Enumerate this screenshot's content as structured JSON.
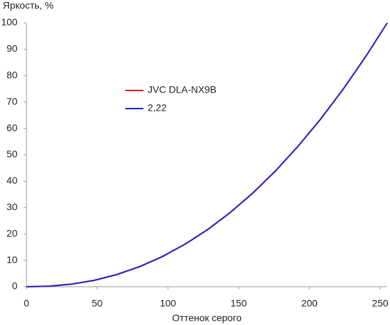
{
  "chart_data": {
    "type": "line",
    "y_label": "Яркость, %",
    "x_label": "Оттенок серого",
    "x": [
      0,
      16,
      32,
      48,
      64,
      80,
      96,
      112,
      128,
      144,
      160,
      176,
      192,
      208,
      224,
      240,
      255
    ],
    "series": [
      {
        "name": "JVC DLA-NX9B",
        "color": "#e8141c",
        "values": [
          0,
          0.2,
          1.0,
          2.4,
          4.6,
          7.6,
          11.4,
          16.1,
          21.6,
          28.1,
          35.5,
          43.9,
          53.3,
          63.6,
          75.0,
          87.4,
          100
        ]
      },
      {
        "name": "2,22",
        "color": "#2222cc",
        "values": [
          0,
          0.21,
          1.0,
          2.45,
          4.65,
          7.63,
          11.43,
          16.1,
          21.65,
          28.13,
          35.53,
          43.9,
          53.26,
          63.62,
          75.0,
          87.4,
          100
        ]
      }
    ],
    "xlim": [
      0,
      255
    ],
    "ylim": [
      0,
      100
    ],
    "xticks": [
      0,
      50,
      100,
      150,
      200,
      250
    ],
    "yticks": [
      0,
      10,
      20,
      30,
      40,
      50,
      60,
      70,
      80,
      90,
      100
    ],
    "grid": false
  }
}
